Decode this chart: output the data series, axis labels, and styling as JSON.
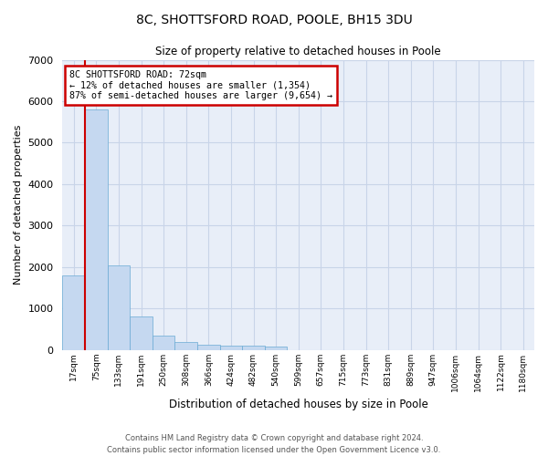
{
  "title_line1": "8C, SHOTTSFORD ROAD, POOLE, BH15 3DU",
  "title_line2": "Size of property relative to detached houses in Poole",
  "xlabel": "Distribution of detached houses by size in Poole",
  "ylabel": "Number of detached properties",
  "bar_color": "#c5d8f0",
  "bar_edge_color": "#6aaad4",
  "grid_color": "#c8d4e8",
  "background_color": "#e8eef8",
  "annotation_box_color": "#cc0000",
  "vline_color": "#cc0000",
  "tick_labels": [
    "17sqm",
    "75sqm",
    "133sqm",
    "191sqm",
    "250sqm",
    "308sqm",
    "366sqm",
    "424sqm",
    "482sqm",
    "540sqm",
    "599sqm",
    "657sqm",
    "715sqm",
    "773sqm",
    "831sqm",
    "889sqm",
    "947sqm",
    "1006sqm",
    "1064sqm",
    "1122sqm",
    "1180sqm"
  ],
  "bar_heights": [
    1800,
    5800,
    2050,
    800,
    340,
    190,
    120,
    110,
    95,
    80,
    5,
    5,
    5,
    3,
    2,
    1,
    1,
    0,
    0,
    0,
    0
  ],
  "ylim": [
    0,
    7000
  ],
  "yticks": [
    0,
    1000,
    2000,
    3000,
    4000,
    5000,
    6000,
    7000
  ],
  "property_label": "8C SHOTTSFORD ROAD: 72sqm",
  "pct_smaller": 12,
  "count_smaller": 1354,
  "pct_larger": 87,
  "count_larger": 9654,
  "vline_x_bar": 0.5,
  "footer_line1": "Contains HM Land Registry data © Crown copyright and database right 2024.",
  "footer_line2": "Contains public sector information licensed under the Open Government Licence v3.0."
}
